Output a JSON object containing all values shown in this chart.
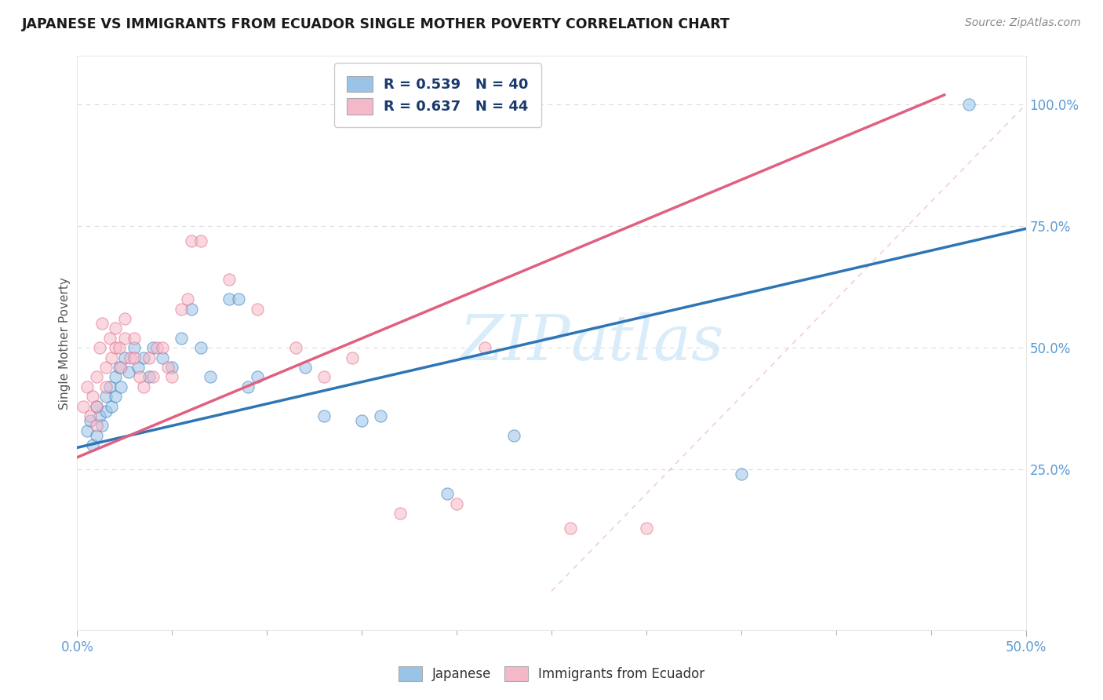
{
  "title": "JAPANESE VS IMMIGRANTS FROM ECUADOR SINGLE MOTHER POVERTY CORRELATION CHART",
  "source": "Source: ZipAtlas.com",
  "ylabel": "Single Mother Poverty",
  "color_japanese": "#99c4e8",
  "color_ecuador": "#f5b8c8",
  "color_japanese_line": "#2e75b6",
  "color_ecuador_line": "#e06080",
  "color_dashed_line": "#e8a0b0",
  "watermark_color": "#d0e8f8",
  "background_color": "#ffffff",
  "japanese_points": [
    [
      0.005,
      0.33
    ],
    [
      0.007,
      0.35
    ],
    [
      0.008,
      0.3
    ],
    [
      0.01,
      0.38
    ],
    [
      0.01,
      0.32
    ],
    [
      0.012,
      0.36
    ],
    [
      0.013,
      0.34
    ],
    [
      0.015,
      0.4
    ],
    [
      0.015,
      0.37
    ],
    [
      0.017,
      0.42
    ],
    [
      0.018,
      0.38
    ],
    [
      0.02,
      0.44
    ],
    [
      0.02,
      0.4
    ],
    [
      0.022,
      0.46
    ],
    [
      0.023,
      0.42
    ],
    [
      0.025,
      0.48
    ],
    [
      0.027,
      0.45
    ],
    [
      0.03,
      0.5
    ],
    [
      0.032,
      0.46
    ],
    [
      0.035,
      0.48
    ],
    [
      0.038,
      0.44
    ],
    [
      0.04,
      0.5
    ],
    [
      0.045,
      0.48
    ],
    [
      0.05,
      0.46
    ],
    [
      0.055,
      0.52
    ],
    [
      0.06,
      0.58
    ],
    [
      0.065,
      0.5
    ],
    [
      0.07,
      0.44
    ],
    [
      0.08,
      0.6
    ],
    [
      0.085,
      0.6
    ],
    [
      0.09,
      0.42
    ],
    [
      0.095,
      0.44
    ],
    [
      0.12,
      0.46
    ],
    [
      0.13,
      0.36
    ],
    [
      0.15,
      0.35
    ],
    [
      0.16,
      0.36
    ],
    [
      0.195,
      0.2
    ],
    [
      0.23,
      0.32
    ],
    [
      0.35,
      0.24
    ],
    [
      0.47,
      1.0
    ]
  ],
  "ecuador_points": [
    [
      0.003,
      0.38
    ],
    [
      0.005,
      0.42
    ],
    [
      0.007,
      0.36
    ],
    [
      0.008,
      0.4
    ],
    [
      0.01,
      0.44
    ],
    [
      0.01,
      0.38
    ],
    [
      0.01,
      0.34
    ],
    [
      0.012,
      0.5
    ],
    [
      0.013,
      0.55
    ],
    [
      0.015,
      0.46
    ],
    [
      0.015,
      0.42
    ],
    [
      0.017,
      0.52
    ],
    [
      0.018,
      0.48
    ],
    [
      0.02,
      0.54
    ],
    [
      0.02,
      0.5
    ],
    [
      0.022,
      0.5
    ],
    [
      0.023,
      0.46
    ],
    [
      0.025,
      0.56
    ],
    [
      0.025,
      0.52
    ],
    [
      0.028,
      0.48
    ],
    [
      0.03,
      0.52
    ],
    [
      0.03,
      0.48
    ],
    [
      0.033,
      0.44
    ],
    [
      0.035,
      0.42
    ],
    [
      0.038,
      0.48
    ],
    [
      0.04,
      0.44
    ],
    [
      0.042,
      0.5
    ],
    [
      0.045,
      0.5
    ],
    [
      0.048,
      0.46
    ],
    [
      0.05,
      0.44
    ],
    [
      0.055,
      0.58
    ],
    [
      0.058,
      0.6
    ],
    [
      0.06,
      0.72
    ],
    [
      0.065,
      0.72
    ],
    [
      0.08,
      0.64
    ],
    [
      0.095,
      0.58
    ],
    [
      0.115,
      0.5
    ],
    [
      0.13,
      0.44
    ],
    [
      0.145,
      0.48
    ],
    [
      0.17,
      0.16
    ],
    [
      0.2,
      0.18
    ],
    [
      0.215,
      0.5
    ],
    [
      0.26,
      0.13
    ],
    [
      0.3,
      0.13
    ]
  ]
}
